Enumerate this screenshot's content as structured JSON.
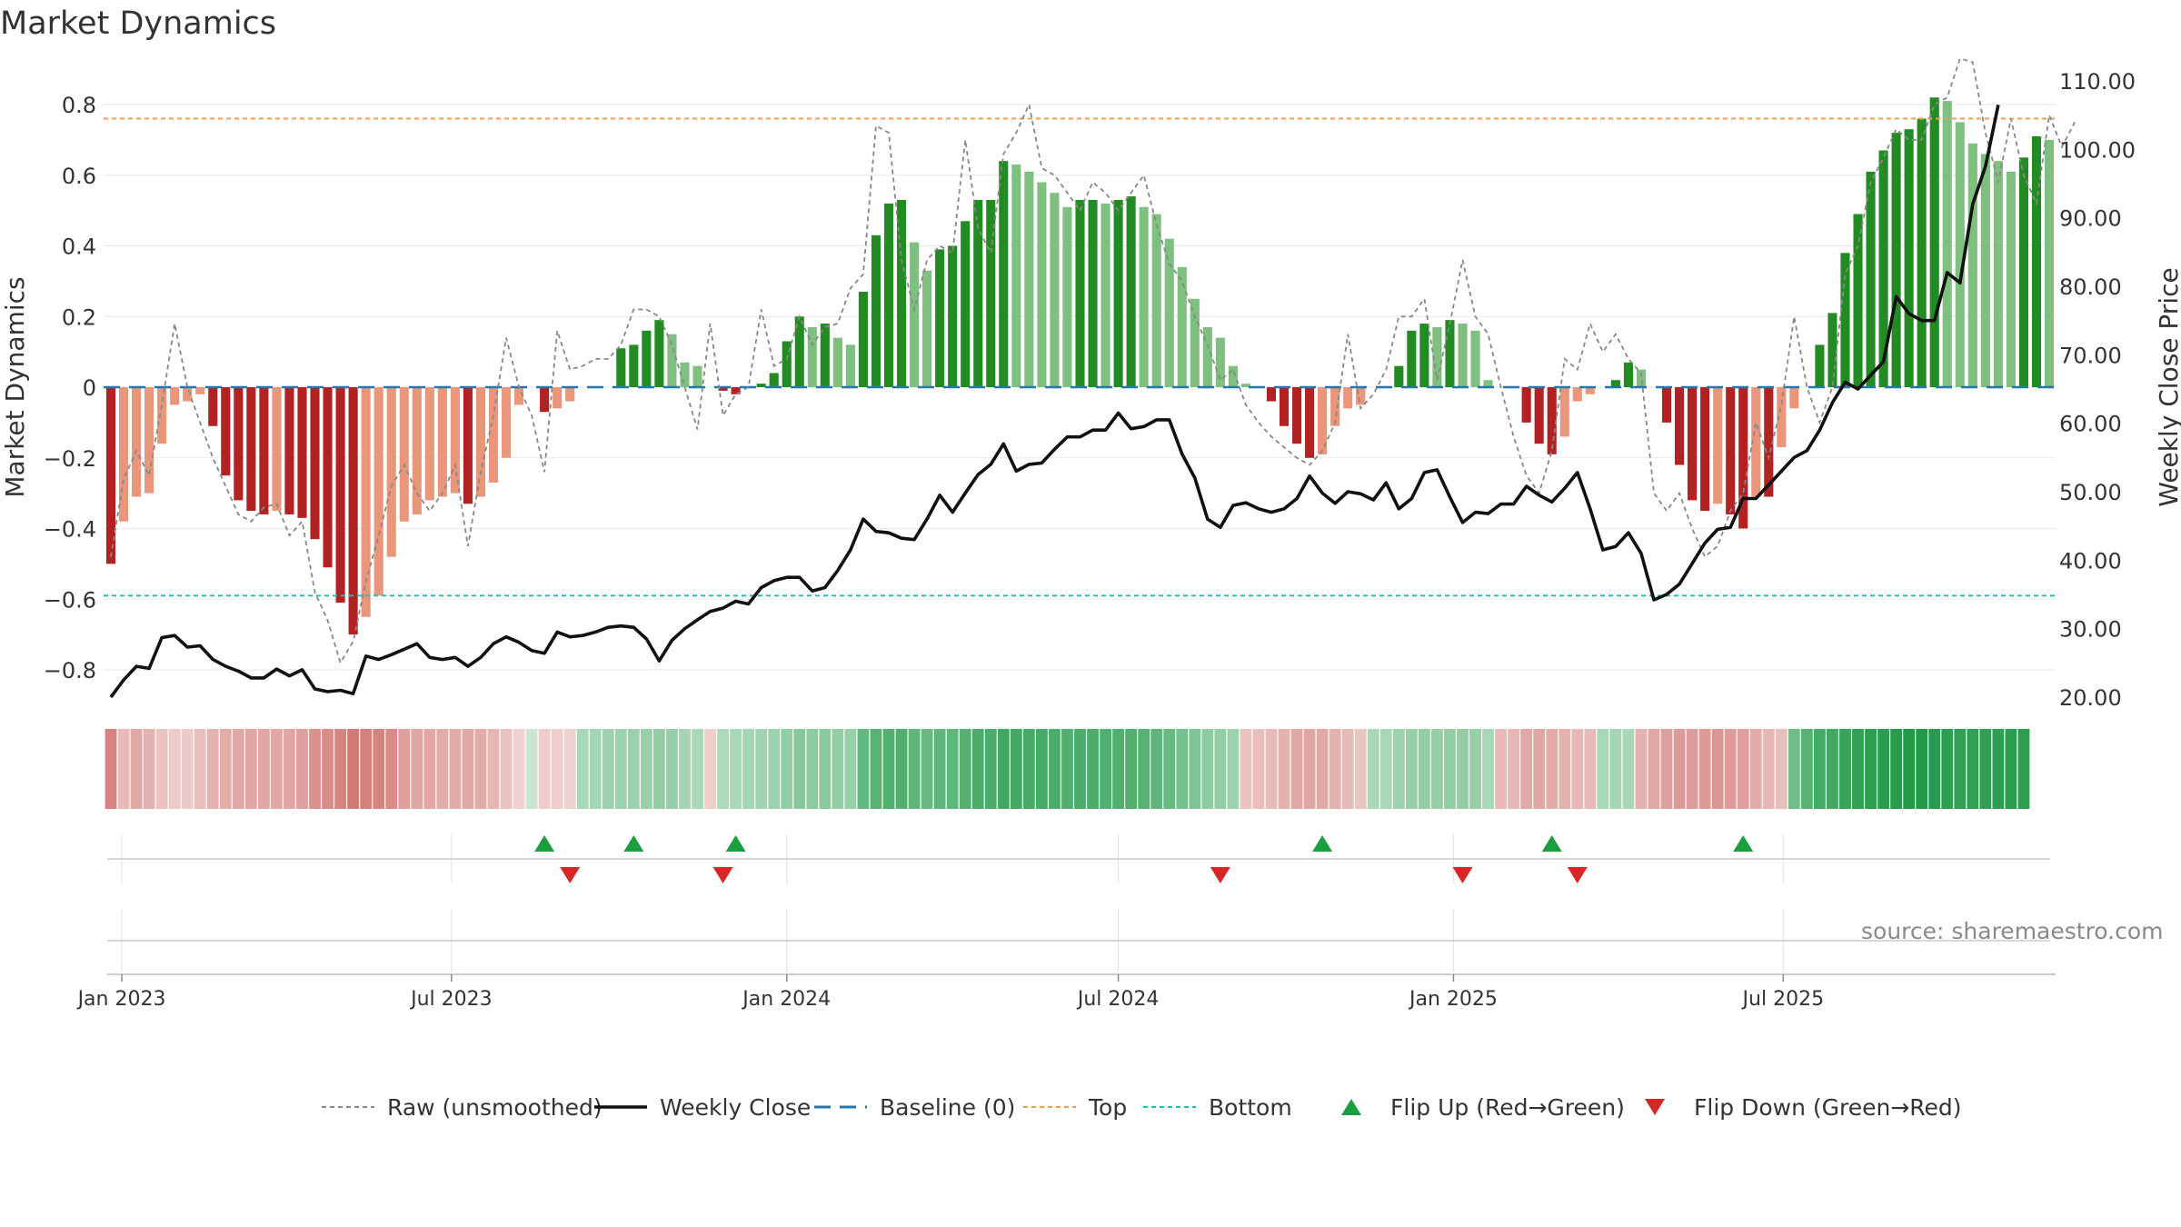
{
  "title": "Market Dynamics",
  "source_note": "source: sharemaestro.com",
  "colors": {
    "strong_green": "#228B22",
    "light_green": "#7FBF7F",
    "strong_red": "#B22222",
    "light_red": "#E9967A",
    "raw": "#888888",
    "close": "#111111",
    "baseline": "#1f77b4",
    "top": "#f0a050",
    "bottom": "#17becf",
    "flip_up": "#1a9e3f",
    "flip_down": "#d62728"
  },
  "chart_data": {
    "type": "bar",
    "title": "Market Dynamics",
    "ylabel": "Market Dynamics",
    "ylabel_right": "Weekly Close Price",
    "ylim": [
      -0.9,
      0.9
    ],
    "ylim_right": [
      18.0,
      111.0
    ],
    "y_ticks": [
      -0.8,
      -0.6,
      -0.4,
      -0.2,
      0,
      0.2,
      0.4,
      0.6,
      0.8
    ],
    "y_tick_labels": [
      "−0.8",
      "−0.6",
      "−0.4",
      "−0.2",
      "0",
      "0.2",
      "0.4",
      "0.6",
      "0.8"
    ],
    "y_right_ticks": [
      20,
      30,
      40,
      50,
      60,
      70,
      80,
      90,
      100,
      110
    ],
    "y_right_tick_labels": [
      "20.00",
      "30.00",
      "40.00",
      "50.00",
      "60.00",
      "70.00",
      "80.00",
      "90.00",
      "100.00",
      "110.00"
    ],
    "x_ticks": [
      "2023-01-01",
      "2023-07-01",
      "2024-01-01",
      "2024-07-01",
      "2025-01-01",
      "2025-07-01"
    ],
    "x_tick_labels": [
      "Jan 2023",
      "Jul 2023",
      "Jan 2024",
      "Jul 2024",
      "Jan 2025",
      "Jul 2025"
    ],
    "start_date": "2022-12-26",
    "grid": true,
    "legend_position": "bottom",
    "top_level": 0.76,
    "bottom_level": -0.59,
    "baseline": 0,
    "legend": [
      "Raw (unsmoothed)",
      "Weekly Close",
      "Baseline (0)",
      "Top",
      "Bottom",
      "Flip Up (Red→Green)",
      "Flip Down (Green→Red)"
    ],
    "series": [
      {
        "name": "Market Dynamics (smoothed)",
        "values": [
          -0.5,
          -0.38,
          -0.31,
          -0.3,
          -0.16,
          -0.05,
          -0.04,
          -0.02,
          -0.11,
          -0.25,
          -0.32,
          -0.35,
          -0.36,
          -0.35,
          -0.36,
          -0.37,
          -0.43,
          -0.51,
          -0.61,
          -0.7,
          -0.65,
          -0.59,
          -0.48,
          -0.38,
          -0.36,
          -0.32,
          -0.31,
          -0.3,
          -0.33,
          -0.31,
          -0.27,
          -0.2,
          -0.05,
          0,
          -0.07,
          -0.06,
          -0.04,
          0,
          0,
          0,
          0.11,
          0.12,
          0.16,
          0.19,
          0.15,
          0.07,
          0.06,
          0,
          -0.01,
          -0.02,
          0,
          0.01,
          0.04,
          0.13,
          0.2,
          0.17,
          0.18,
          0.14,
          0.12,
          0.27,
          0.43,
          0.52,
          0.53,
          0.41,
          0.33,
          0.39,
          0.4,
          0.47,
          0.53,
          0.53,
          0.64,
          0.63,
          0.61,
          0.58,
          0.55,
          0.51,
          0.53,
          0.53,
          0.52,
          0.53,
          0.54,
          0.51,
          0.49,
          0.42,
          0.34,
          0.25,
          0.17,
          0.14,
          0.06,
          0.01,
          0,
          -0.04,
          -0.11,
          -0.16,
          -0.2,
          -0.19,
          -0.11,
          -0.06,
          -0.05,
          0,
          0,
          0.06,
          0.16,
          0.18,
          0.17,
          0.19,
          0.18,
          0.16,
          0.02,
          0,
          0,
          -0.1,
          -0.16,
          -0.19,
          -0.14,
          -0.04,
          -0.02,
          0,
          0.02,
          0.07,
          0.05,
          0,
          -0.1,
          -0.22,
          -0.32,
          -0.35,
          -0.33,
          -0.36,
          -0.4,
          -0.31,
          -0.31,
          -0.17,
          -0.06,
          0,
          0.12,
          0.21,
          0.38,
          0.49,
          0.61,
          0.67,
          0.72,
          0.73,
          0.76,
          0.82,
          0.81,
          0.75,
          0.69,
          0.66,
          0.64,
          0.61,
          0.65,
          0.71,
          0.7
        ]
      },
      {
        "name": "Raw (unsmoothed)",
        "values": [
          -0.48,
          -0.26,
          -0.18,
          -0.25,
          -0.05,
          0.18,
          0.0,
          -0.1,
          -0.2,
          -0.28,
          -0.36,
          -0.38,
          -0.34,
          -0.33,
          -0.42,
          -0.38,
          -0.58,
          -0.66,
          -0.78,
          -0.72,
          -0.55,
          -0.42,
          -0.28,
          -0.22,
          -0.3,
          -0.35,
          -0.3,
          -0.22,
          -0.45,
          -0.24,
          -0.08,
          0.14,
          0.0,
          -0.08,
          -0.24,
          0.16,
          0.05,
          0.06,
          0.08,
          0.08,
          0.12,
          0.22,
          0.22,
          0.2,
          0.12,
          0.0,
          -0.12,
          0.18,
          -0.08,
          -0.02,
          0.0,
          0.22,
          0.06,
          0.08,
          0.2,
          0.12,
          0.17,
          0.18,
          0.28,
          0.32,
          0.74,
          0.72,
          0.36,
          0.22,
          0.36,
          0.4,
          0.38,
          0.7,
          0.45,
          0.38,
          0.66,
          0.72,
          0.8,
          0.62,
          0.6,
          0.55,
          0.5,
          0.58,
          0.55,
          0.5,
          0.55,
          0.6,
          0.46,
          0.35,
          0.3,
          0.2,
          0.12,
          0.02,
          0.05,
          -0.05,
          -0.1,
          -0.14,
          -0.17,
          -0.2,
          -0.22,
          -0.18,
          -0.1,
          0.15,
          -0.06,
          -0.02,
          0.05,
          0.2,
          0.2,
          0.25,
          0.02,
          0.18,
          0.36,
          0.2,
          0.15,
          0.0,
          -0.14,
          -0.25,
          -0.3,
          -0.18,
          0.08,
          0.05,
          0.18,
          0.1,
          0.15,
          0.08,
          0.04,
          -0.3,
          -0.35,
          -0.3,
          -0.4,
          -0.48,
          -0.45,
          -0.35,
          -0.3,
          -0.1,
          -0.2,
          -0.05,
          0.2,
          0.0,
          -0.1,
          0.0,
          0.32,
          0.4,
          0.58,
          0.65,
          0.73,
          0.7,
          0.7,
          0.8,
          0.82,
          0.93,
          0.92,
          0.72,
          0.58,
          0.76,
          0.6,
          0.52,
          0.77,
          0.68,
          0.75
        ]
      },
      {
        "name": "Weekly Close",
        "values": [
          20.0,
          22.5,
          24.5,
          24.2,
          28.7,
          29.0,
          27.3,
          27.5,
          25.5,
          24.5,
          23.8,
          22.8,
          22.8,
          24.1,
          23.1,
          24.0,
          21.2,
          20.8,
          21.0,
          20.5,
          26.0,
          25.5,
          26.2,
          27.0,
          27.8,
          25.8,
          25.5,
          25.8,
          24.5,
          25.8,
          27.8,
          28.8,
          28.0,
          26.8,
          26.4,
          29.5,
          28.8,
          29.0,
          29.5,
          30.2,
          30.4,
          30.2,
          28.5,
          25.3,
          28.3,
          30.0,
          31.3,
          32.5,
          33.0,
          34.0,
          33.6,
          36.0,
          37.0,
          37.5,
          37.5,
          35.5,
          36.0,
          38.5,
          41.5,
          46.0,
          44.2,
          44.0,
          43.2,
          43.0,
          46.0,
          49.5,
          47.0,
          49.8,
          52.5,
          54.0,
          57.0,
          53.0,
          54.0,
          54.2,
          56.2,
          58.0,
          58.0,
          59.0,
          59.0,
          61.5,
          59.2,
          59.5,
          60.5,
          60.5,
          55.5,
          52.0,
          46.0,
          44.8,
          48.0,
          48.4,
          47.5,
          47.0,
          47.5,
          49.0,
          52.3,
          49.8,
          48.3,
          50.0,
          49.7,
          48.8,
          51.3,
          47.5,
          49.0,
          52.8,
          53.2,
          49.2,
          45.5,
          47.0,
          46.8,
          48.2,
          48.2,
          50.8,
          49.5,
          48.5,
          50.5,
          52.8,
          47.5,
          41.5,
          42.0,
          44.0,
          41.0,
          34.2,
          35.0,
          36.5,
          39.5,
          42.5,
          44.5,
          44.8,
          49.0,
          49.0,
          51.0,
          53.0,
          55.0,
          56.0,
          59.0,
          63.0,
          66.0,
          65.0,
          67.0,
          69.0,
          78.5,
          76.0,
          75.0,
          75.0,
          82.0,
          80.5,
          92.0,
          97.5,
          106.5
        ]
      }
    ],
    "flip_up_dates": [
      "2023-08-21",
      "2023-10-09",
      "2023-12-04",
      "2024-10-21",
      "2025-02-24",
      "2025-06-09"
    ],
    "flip_down_dates": [
      "2023-09-04",
      "2023-11-27",
      "2024-08-26",
      "2025-01-06",
      "2025-03-10"
    ],
    "heat_strip_values": [
      -0.5,
      -0.2,
      -0.3,
      -0.25,
      -0.15,
      -0.12,
      -0.12,
      -0.18,
      -0.25,
      -0.28,
      -0.3,
      -0.32,
      -0.32,
      -0.3,
      -0.32,
      -0.35,
      -0.42,
      -0.45,
      -0.5,
      -0.55,
      -0.52,
      -0.5,
      -0.45,
      -0.35,
      -0.32,
      -0.3,
      -0.28,
      -0.28,
      -0.3,
      -0.28,
      -0.22,
      -0.15,
      -0.08,
      0.06,
      -0.1,
      -0.1,
      -0.08,
      0.2,
      0.22,
      0.25,
      0.25,
      0.26,
      0.28,
      0.3,
      0.28,
      0.22,
      0.2,
      -0.1,
      0.18,
      0.2,
      0.22,
      0.24,
      0.26,
      0.3,
      0.35,
      0.32,
      0.33,
      0.3,
      0.28,
      0.5,
      0.55,
      0.58,
      0.58,
      0.52,
      0.48,
      0.52,
      0.52,
      0.56,
      0.6,
      0.6,
      0.65,
      0.64,
      0.62,
      0.62,
      0.6,
      0.58,
      0.6,
      0.6,
      0.58,
      0.58,
      0.58,
      0.55,
      0.52,
      0.48,
      0.42,
      0.38,
      0.32,
      0.3,
      0.25,
      -0.15,
      -0.18,
      -0.2,
      -0.25,
      -0.3,
      -0.32,
      -0.3,
      -0.25,
      -0.2,
      -0.15,
      0.2,
      0.2,
      0.25,
      0.28,
      0.3,
      0.28,
      0.3,
      0.3,
      0.28,
      0.2,
      -0.2,
      -0.22,
      -0.3,
      -0.32,
      -0.28,
      -0.25,
      -0.22,
      -0.2,
      0.2,
      0.22,
      0.2,
      -0.25,
      -0.3,
      -0.35,
      -0.38,
      -0.36,
      -0.38,
      -0.4,
      -0.36,
      -0.35,
      -0.28,
      -0.22,
      -0.18,
      0.45,
      0.55,
      0.62,
      0.65,
      0.7,
      0.72,
      0.74,
      0.75,
      0.76,
      0.78,
      0.78,
      0.76,
      0.74,
      0.72,
      0.72,
      0.72,
      0.73,
      0.75,
      0.74
    ]
  },
  "legend_items": [
    {
      "label": "Raw (unsmoothed)",
      "style": "raw"
    },
    {
      "label": "Weekly Close",
      "style": "close"
    },
    {
      "label": "Baseline (0)",
      "style": "baseline"
    },
    {
      "label": "Top",
      "style": "top"
    },
    {
      "label": "Bottom",
      "style": "bottom"
    },
    {
      "label": "Flip Up (Red→Green)",
      "style": "flip_up"
    },
    {
      "label": "Flip Down (Green→Red)",
      "style": "flip_down"
    }
  ]
}
